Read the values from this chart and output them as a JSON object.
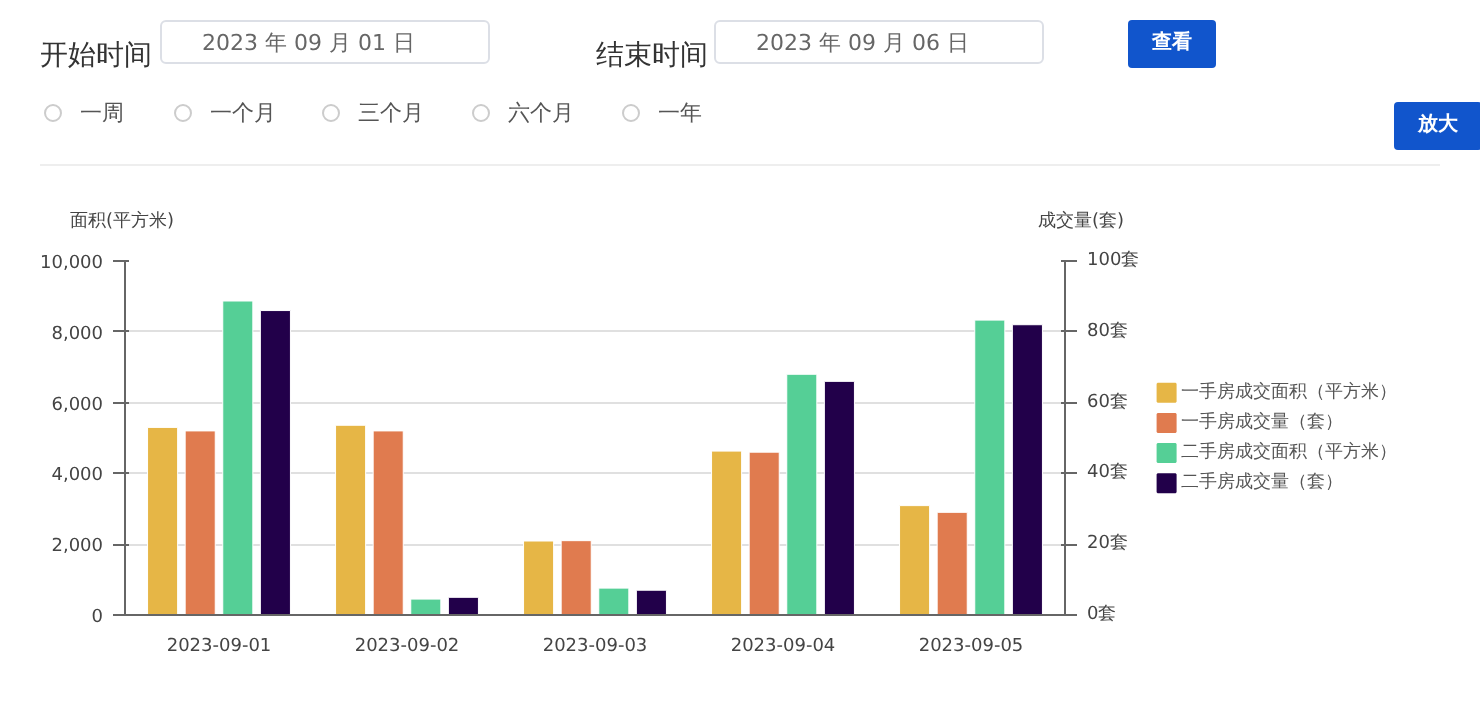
{
  "chart_data": {
    "type": "bar",
    "categories": [
      "2023-09-01",
      "2023-09-02",
      "2023-09-03",
      "2023-09-04",
      "2023-09-05"
    ],
    "ylabel": "面积(平方米)",
    "y2label": "成交量(套)",
    "ylim": [
      0,
      10000
    ],
    "yticks": [
      {
        "value": 0,
        "label": "0"
      },
      {
        "value": 2000,
        "label": "2,000"
      },
      {
        "value": 4000,
        "label": "4,000"
      },
      {
        "value": 6000,
        "label": "6,000"
      },
      {
        "value": 8000,
        "label": "8,000"
      },
      {
        "value": 10000,
        "label": "10,000"
      }
    ],
    "y2lim": [
      0,
      100
    ],
    "y2ticks": [
      {
        "value": 0,
        "label": "0套"
      },
      {
        "value": 20,
        "label": "20套"
      },
      {
        "value": 40,
        "label": "40套"
      },
      {
        "value": 60,
        "label": "60套"
      },
      {
        "value": 80,
        "label": "80套"
      },
      {
        "value": 100,
        "label": "100套"
      }
    ],
    "series": [
      {
        "name": "一手房成交面积（平方米）",
        "color": "#e6b646",
        "values": [
          5300,
          5360,
          2090,
          4630,
          3090
        ]
      },
      {
        "name": "一手房成交量（套）",
        "color": "#e07b4f",
        "axis": "y2",
        "values": [
          52,
          52,
          21,
          46,
          29
        ]
      },
      {
        "name": "二手房成交面积（平方米）",
        "color": "#55cf96",
        "values": [
          8870,
          450,
          760,
          6800,
          8330
        ]
      },
      {
        "name": "二手房成交量（套）",
        "color": "#22004a",
        "axis": "y2",
        "values": [
          86,
          5,
          7,
          66,
          82
        ]
      }
    ],
    "grid": "y",
    "legend": "right",
    "annotations": [
      "开始时间",
      "2023 年 09 月 01 日",
      "结束时间",
      "2023 年 09 月 06 日",
      "查看",
      "一周",
      "一个月",
      "三个月",
      "六个月",
      "一年",
      "放大"
    ]
  }
}
